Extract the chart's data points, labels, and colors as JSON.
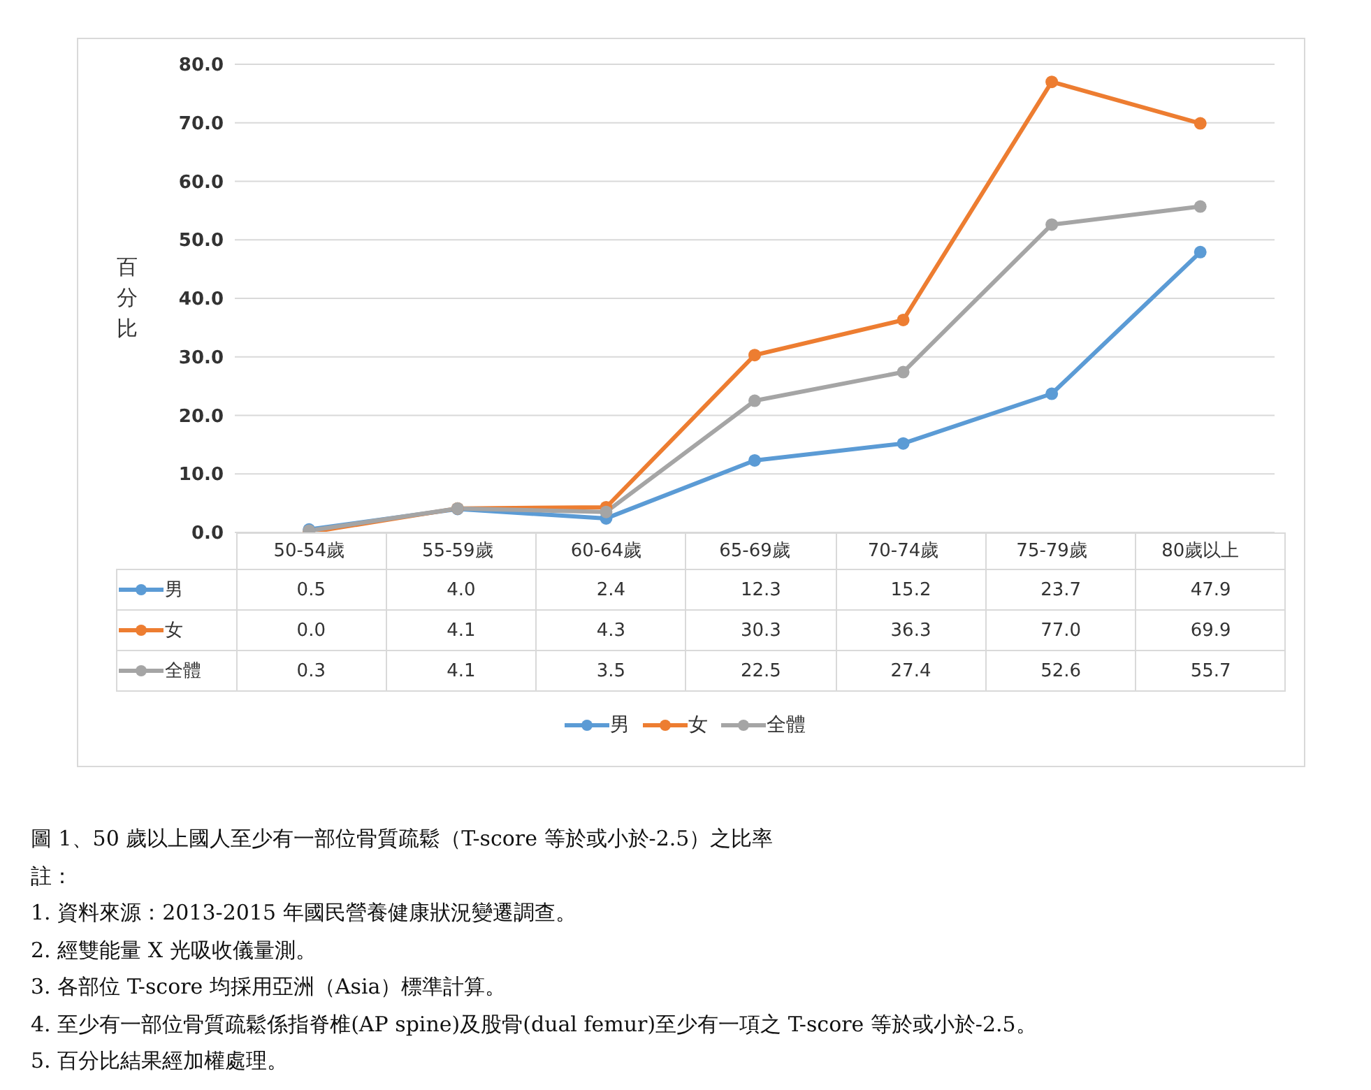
{
  "chart_data": {
    "type": "line",
    "title": "圖 1、50 歲以上國人至少有一部位骨質疏鬆（T-score 等於或小於-2.5）之比率",
    "ylabel": "百分比",
    "categories": [
      "50-54歲",
      "55-59歲",
      "60-64歲",
      "65-69歲",
      "70-74歲",
      "75-79歲",
      "80歲以上"
    ],
    "series": [
      {
        "name": "男",
        "color": "#5b9bd5",
        "values": [
          0.5,
          4.0,
          2.4,
          12.3,
          15.2,
          23.7,
          47.9
        ],
        "value_labels": [
          "0.5",
          "4.0",
          "2.4",
          "12.3",
          "15.2",
          "23.7",
          "47.9"
        ]
      },
      {
        "name": "女",
        "color": "#ed7d31",
        "values": [
          0.0,
          4.1,
          4.3,
          30.3,
          36.3,
          77.0,
          69.9
        ],
        "value_labels": [
          "0.0",
          "4.1",
          "4.3",
          "30.3",
          "36.3",
          "77.0",
          "69.9"
        ]
      },
      {
        "name": "全體",
        "color": "#a5a5a5",
        "values": [
          0.3,
          4.1,
          3.5,
          22.5,
          27.4,
          52.6,
          55.7
        ],
        "value_labels": [
          "0.3",
          "4.1",
          "3.5",
          "22.5",
          "27.4",
          "52.6",
          "55.7"
        ]
      }
    ],
    "ylim": [
      0,
      80
    ],
    "yticks": [
      {
        "value": 0,
        "label": "0.0"
      },
      {
        "value": 10,
        "label": "10.0"
      },
      {
        "value": 20,
        "label": "20.0"
      },
      {
        "value": 30,
        "label": "30.0"
      },
      {
        "value": 40,
        "label": "40.0"
      },
      {
        "value": 50,
        "label": "50.0"
      },
      {
        "value": 60,
        "label": "60.0"
      },
      {
        "value": 70,
        "label": "70.0"
      },
      {
        "value": 80,
        "label": "80.0"
      }
    ],
    "grid": "y",
    "legend": "bottom",
    "marker": "circle",
    "line_style": "solid",
    "annotations": [
      "註：",
      "1. 資料來源：2013-2015 年國民營養健康狀況變遷調查。",
      "2. 經雙能量 X 光吸收儀量測。",
      "3. 各部位 T-score 均採用亞洲（Asia）標準計算。",
      "4. 至少有一部位骨質疏鬆係指脊椎(AP spine)及股骨(dual femur)至少有一項之 T-score 等於或小於-2.5。",
      "5. 百分比結果經加權處理。"
    ]
  }
}
